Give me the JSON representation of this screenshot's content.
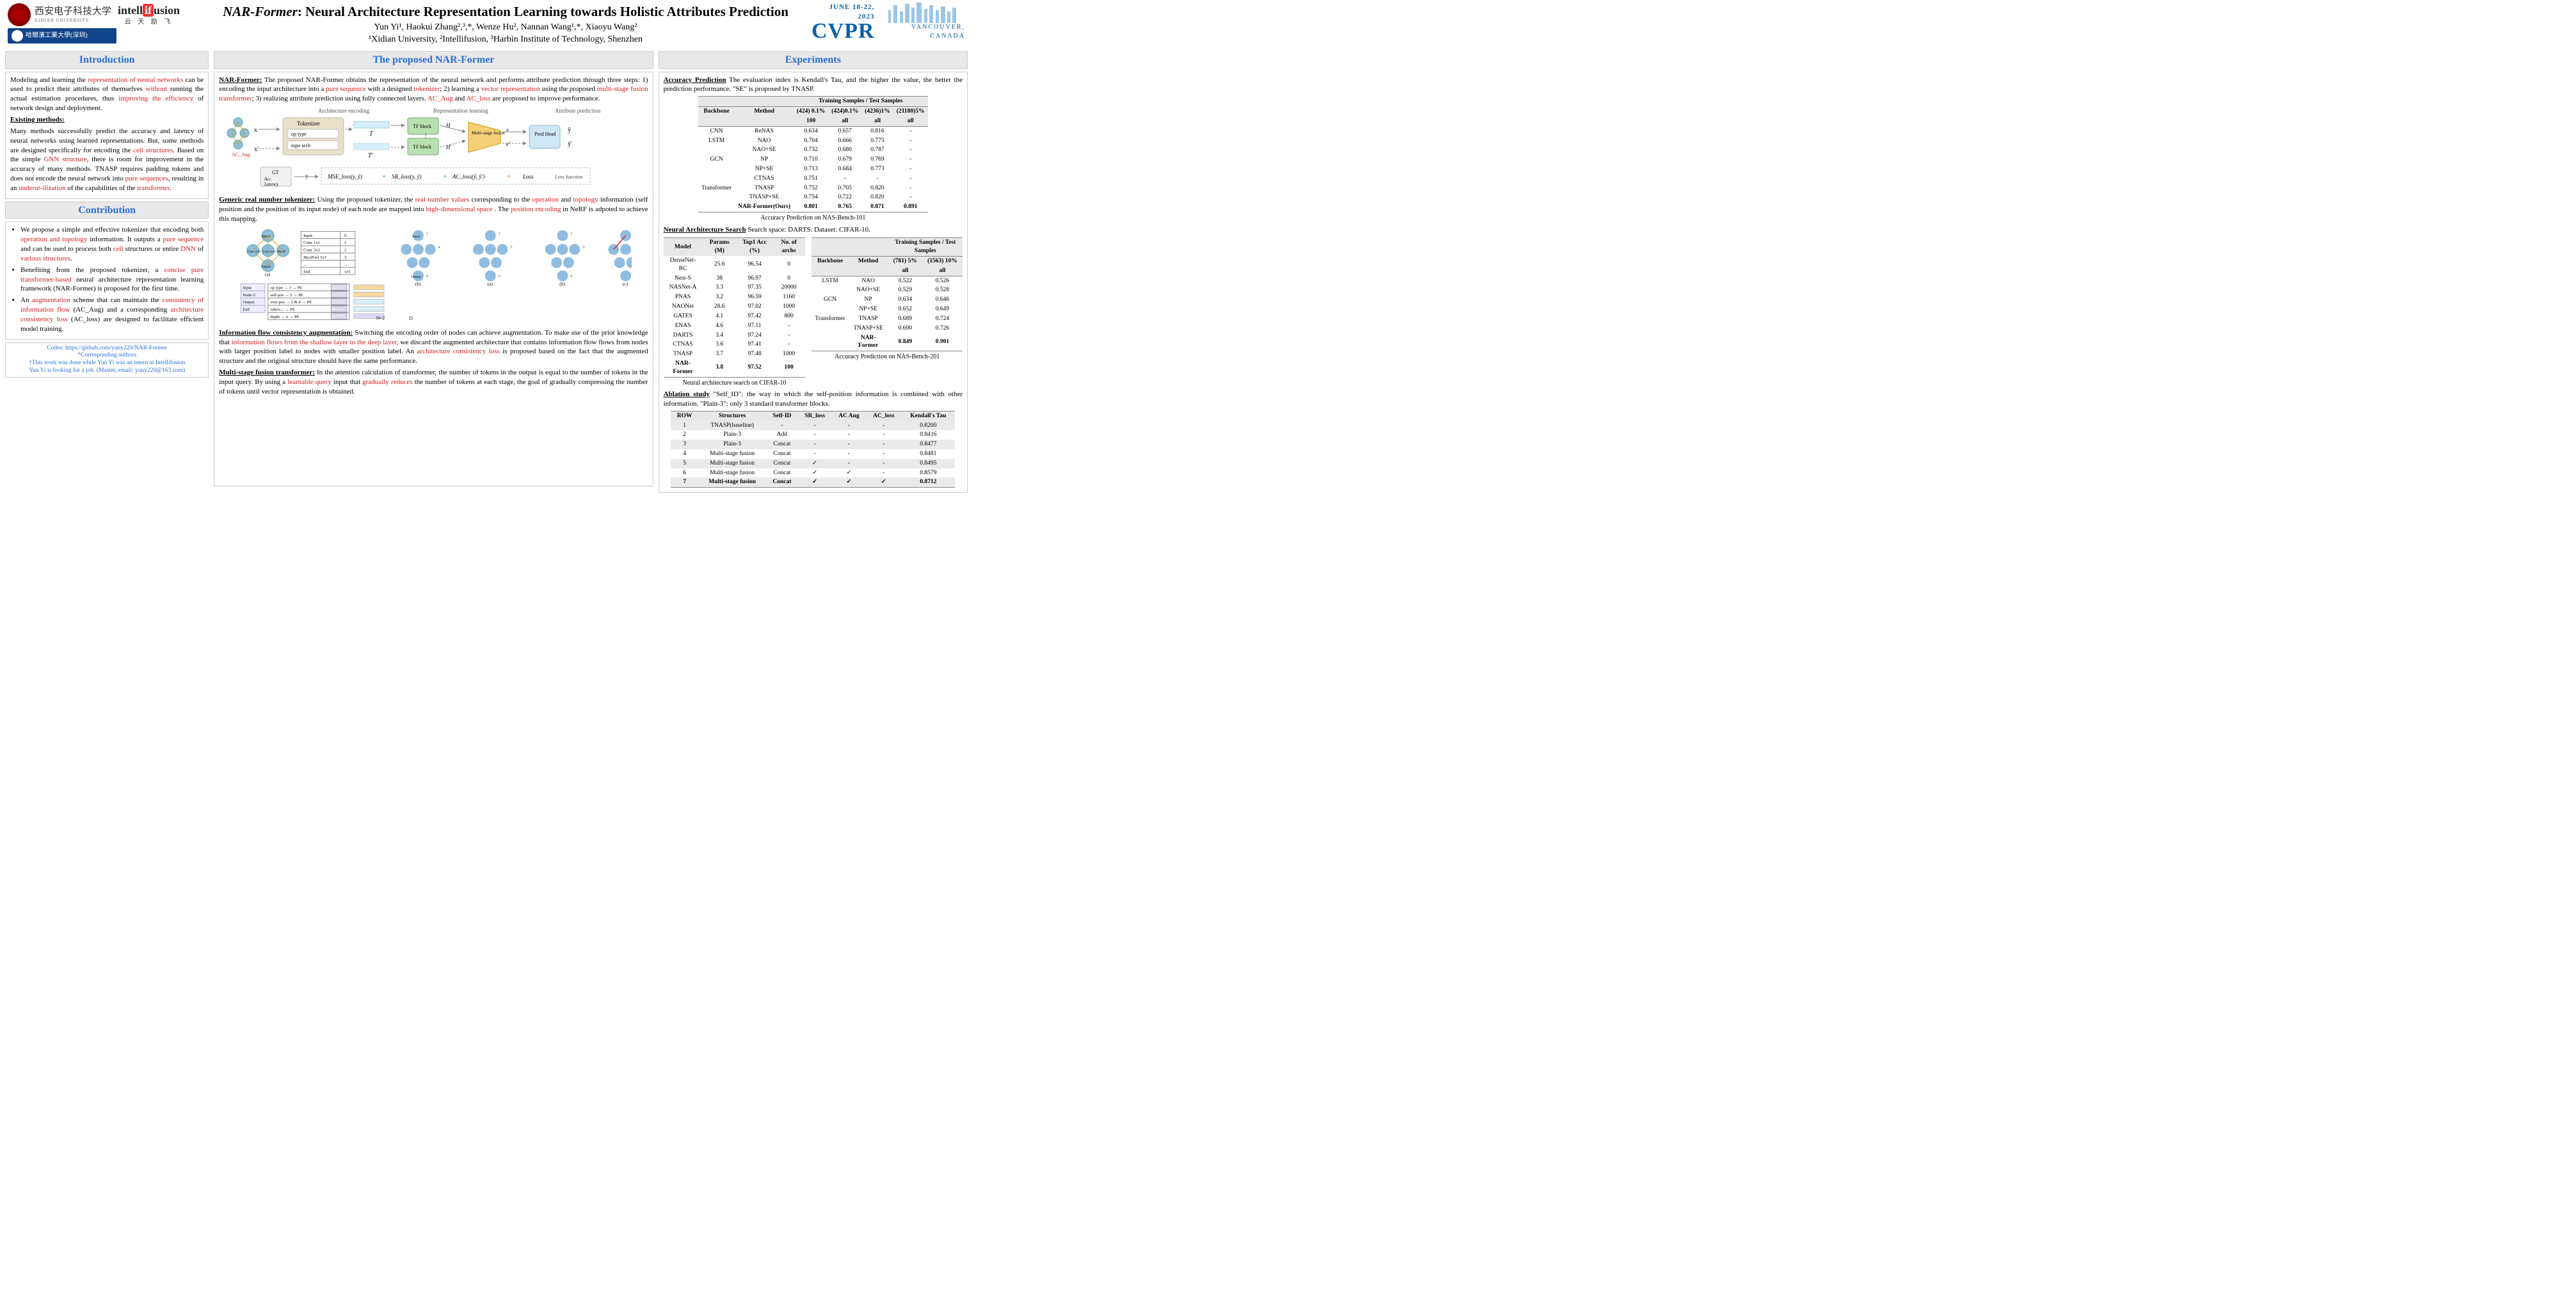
{
  "header": {
    "title_prefix": "NAR-Former",
    "title_rest": ": Neural Architecture Representation Learning towards  Holistic Attributes Prediction",
    "authors": "Yun Yi¹,     Haokui Zhang²,³,*,     Wenze Hu²,     Nannan Wang¹,*,     Xiaoyu Wang²",
    "affil": "¹Xidian University,    ²Intellifusion,    ³Harbin Institute of Technology, Shenzhen",
    "xidian_cn": "西安电子科技大学",
    "xidian_en": "XIDIAN UNIVERSITY",
    "intelli": "intell",
    "intelli_red": "if",
    "intelli2": "usion",
    "intelli_sub": "云  天  励  飞",
    "harbin": "哈爾濱工業大學(深圳)",
    "harbin_en": "HARBIN INSTITUTE OF TECHNOLOGY",
    "cvpr_date": "JUNE 18-22, 2023",
    "cvpr_logo": "CVPR",
    "cvpr_city": "VANCOUVER, CANADA"
  },
  "intro": {
    "head": "Introduction",
    "p1a": "Modeling and learning the ",
    "p1b": "representation of neural networks",
    "p1c": " can be used to predict their attributes of themselves ",
    "p1d": "without",
    "p1e": " running the actual estimation procedures, thus ",
    "p1f": "improving the efficiency",
    "p1g": " of network design and deployment.",
    "existing_h": "Existing methods:",
    "p2a": "Many methods successfully predict the accuracy and latency of neural networks using learned representations. But, some methods are designed specifically for encoding the ",
    "p2b": "cell structures",
    "p2c": ". Based on the simple ",
    "p2d": "GNN structure",
    "p2e": ", there is room for improvement in the accuracy of many methods. TNASP requires padding tokens and does not encode the neural network into ",
    "p2f": "pure sequences",
    "p2g": ", resulting in an ",
    "p2h": "underut-ilization",
    "p2i": " of the capabilities of the ",
    "p2j": "transformer",
    "p2k": "."
  },
  "contrib": {
    "head": "Contribution",
    "b1a": "We propose a simple and effective tokenizer that encoding both ",
    "b1b": "operation and topology",
    "b1c": " information. It outputs a ",
    "b1d": "pure sequence",
    "b1e": " and can be used to process both ",
    "b1f": "cell",
    "b1g": " structures or entire ",
    "b1h": "DNN",
    "b1i": " of ",
    "b1j": "various structures",
    "b1k": ".",
    "b2a": "Benefiting from the proposed tokenizer, a ",
    "b2b": "concise pure transformer-based",
    "b2c": " neural architecture representation learning framework (NAR-Former) is proposed for the first time.",
    "b3a": "An ",
    "b3b": "augmentation",
    "b3c": " scheme that can maintain the ",
    "b3d": "consistency of information flow",
    "b3e": " (AC_Aug) and a corresponding ",
    "b3f": "architecture consistency loss",
    "b3g": " (AC_loss) are designed to facilitate efficient model training."
  },
  "footnote": {
    "l1": "Codes: https://github.com/yuny220/NAR-Former",
    "l2": "*Corresponding authors",
    "l3": "†This work was done while Yun Yi was an intern at Intellifusion",
    "l4": "Yun Yi is looking for a job. (Master, email: yuny220@163.com)"
  },
  "mid": {
    "head": "The proposed NAR-Former",
    "nar_h": "NAR-Former:",
    "p1a": " The proposed NAR-Former obtains the representation of the neural network and performs attribute prediction through three steps: 1) encoding the input architecture into a ",
    "p1b": "pure sequence",
    "p1c": " with a designed ",
    "p1d": "tokenizer",
    "p1e": "; 2) learning a ",
    "p1f": "vector representation",
    "p1g": " using the proposed ",
    "p1h": "multi-stage fusion transformer",
    "p1i": "; 3) realizing attribute prediction using fully connected layers. ",
    "p1j": "AC_Aug",
    "p1k": " and ",
    "p1l": "AC_loss",
    "p1m": " are proposed to improve performance.",
    "diag1": {
      "labels": {
        "arch_enc": "Architecture encoding",
        "repr": "Representation learning",
        "attr": "Attribute prediction",
        "tokenizer": "Tokenizer",
        "optype": "op type",
        "topo": "topo arch",
        "tf1": "TF block",
        "tf2": "TF block",
        "fusion": "Multi-stage fusion",
        "pred": "Pred Head",
        "gt": "GT",
        "acc": "Acc",
        "lat": "Latency",
        "mse": "MSE_loss(y, ŷ)",
        "sr": "SR_loss(y, ŷ)",
        "ac": "AC_loss(ŷ, ŷ')",
        "loss": "Loss",
        "lossfn": "Loss function",
        "ac_aug": "AC_Aug"
      },
      "colors": {
        "tokenizer_bg": "#e8e0c8",
        "tf_bg": "#b8e0b0",
        "fusion_bg": "#f5d078",
        "pred_bg": "#cfe6f5",
        "node": "#8fbce0",
        "border": "#bbbbbb"
      }
    },
    "tok_h": "Generic real number tokenizer:",
    "tok_a": " Using the proposed tokenizer, the ",
    "tok_b": "real number values",
    "tok_c": " corresponding to the ",
    "tok_d": "operation",
    "tok_e": " and ",
    "tok_f": "topology",
    "tok_g": " information (self position and the position of its input node) of each node are mapped into ",
    "tok_h2": "high-dimensional space",
    "tok_i": " . The ",
    "tok_j": "position encoding",
    "tok_k": " in NeRF is adpoted to achieve this mapping.",
    "diag2": {
      "op_table": [
        [
          "Input",
          "0"
        ],
        [
          "Conv 1x1",
          "1"
        ],
        [
          "Conv 3x3",
          "2"
        ],
        [
          "MaxPool 3x3",
          "3"
        ],
        [
          "...",
          "..."
        ],
        [
          "End",
          "1e5"
        ]
      ],
      "pe_rows": [
        "op type → 3 → PE",
        "self-pos → 5 → PE",
        "sour-pos → 2 & 4 → PE",
        "others... → PE",
        "depth → 6 → PE"
      ],
      "node_labels": [
        "Input",
        "Conv 3x3",
        "Conv 1x1",
        "Max Pool 3x3",
        "Output"
      ],
      "colors": {
        "node_fill": "#8fbce0",
        "edge": "#d0a020",
        "edge_red": "#d02020",
        "table_border": "#888"
      }
    },
    "ifc_h": "Information flow consistency augmentation:",
    "ifc_a": " Switching the encoding order of nodes can achieve augmentation. To make use of the prior knowledge that ",
    "ifc_b": "information flows from the shallow layer to the deep layer,",
    "ifc_c": " we discard the augmented architecture that contains information flow flows from nodes with larger position label to nodes with smaller position label. An ",
    "ifc_d": "architecture consistency loss",
    "ifc_e": " is proposed based on the fact that the augmented structure and the original structure should have the same performance.",
    "msf_h": "Multi-stage fusion transformer:",
    "msf_a": " In the attention calculation of transformer, the number of tokens in the output is equal to the number of tokens in the input query. By using a ",
    "msf_b": "learnable query",
    "msf_c": " input that ",
    "msf_d": "gradually reduces",
    "msf_e": " the number of tokens at each stage, the goal of gradually compressing the number of tokens until vector representation is obtained."
  },
  "exp": {
    "head": "Experiments",
    "acc_h": "Accuracy Prediction",
    "acc_intro": "  The evaluation index is Kendall's Tau, and the higher the value, the better the prediction performance. \"SE\" is proposed by TNASP.",
    "t1": {
      "head_top": "Training Samples / Test Samples",
      "cols": [
        "Backbone",
        "Method",
        "(424) 0.1%",
        "(424)0.1%",
        "(4236)1%",
        "(21180)5%"
      ],
      "cols2": [
        "",
        "",
        "100",
        "all",
        "all",
        "all"
      ],
      "rows": [
        [
          "CNN",
          "ReNAS",
          "0.634",
          "0.657",
          "0.816",
          "-"
        ],
        [
          "LSTM",
          "NAO",
          "0.704",
          "0.666",
          "0.775",
          "-"
        ],
        [
          "",
          "NAO+SE",
          "0.732",
          "0.680",
          "0.787",
          "-"
        ],
        [
          "GCN",
          "NP",
          "0.710",
          "0.679",
          "0.769",
          "-"
        ],
        [
          "",
          "NP+SE",
          "0.713",
          "0.684",
          "0.773",
          "-"
        ],
        [
          "",
          "CTNAS",
          "0.751",
          "-",
          "-",
          "-"
        ],
        [
          "Transformer",
          "TNASP",
          "0.752",
          "0.705",
          "0.820",
          "-"
        ],
        [
          "",
          "TNASP+SE",
          "0.754",
          "0.722",
          "0.820",
          "-"
        ],
        [
          "",
          "NAR-Former(Ours)",
          "0.801",
          "0.765",
          "0.871",
          "0.891"
        ]
      ],
      "bold_row": 8,
      "caption": "Accuracy Prediction on NAS-Bench-101"
    },
    "nas_h": "Neural Architecture Search",
    "nas_intro": "  Search space: DARTS. Dataset: CIFAR-10.",
    "t2a": {
      "cols": [
        "Model",
        "Params (M)",
        "Top1 Acc (%)",
        "No. of archs"
      ],
      "rows": [
        [
          "DenseNet-BC",
          "25.6",
          "96.54",
          "0"
        ],
        [
          "Nest-S",
          "38",
          "96.97",
          "0"
        ],
        [
          "NASNet-A",
          "3.3",
          "97.35",
          "20000"
        ],
        [
          "PNAS",
          "3.2",
          "96.59",
          "1160"
        ],
        [
          "NAONet",
          "28.6",
          "97.02",
          "1000"
        ],
        [
          "GATES",
          "4.1",
          "97.42",
          "800"
        ],
        [
          "ENAS",
          "4.6",
          "97.11",
          "-"
        ],
        [
          "DARTS",
          "3.4",
          "97.24",
          "-"
        ],
        [
          "CTNAS",
          "3.6",
          "97.41",
          "-"
        ],
        [
          "TNASP",
          "3.7",
          "97.48",
          "1000"
        ],
        [
          "NAR-Former",
          "3.8",
          "97.52",
          "100"
        ]
      ],
      "bold_row": 10,
      "caption": "Neural architecture search on CIFAR-10"
    },
    "t2b": {
      "head_top": "Training Samples / Test Samples",
      "cols": [
        "Backbone",
        "Method",
        "(781) 5%",
        "(1563) 10%"
      ],
      "cols2": [
        "",
        "",
        "all",
        "all"
      ],
      "rows": [
        [
          "LSTM",
          "NAO",
          "0.522",
          "0.526"
        ],
        [
          "",
          "NAO+SE",
          "0.529",
          "0.528"
        ],
        [
          "GCN",
          "NP",
          "0.634",
          "0.646"
        ],
        [
          "",
          "NP+SE",
          "0.652",
          "0.649"
        ],
        [
          "Transformer",
          "TNASP",
          "0.689",
          "0.724"
        ],
        [
          "",
          "TNASP+SE",
          "0.690",
          "0.726"
        ],
        [
          "",
          "NAR-Former",
          "0.849",
          "0.901"
        ]
      ],
      "bold_row": 6,
      "caption": "Accuracy Prediction on NAS-Bench-201"
    },
    "abl_h": "Ablation study",
    "abl_intro": " \"Self_ID\": the way in which the self-position information is combined with other information. \"Plain-3\": only 3 standard transformer blocks.",
    "t3": {
      "cols": [
        "ROW",
        "Structures",
        "Self-ID",
        "SR_loss",
        "AC Aug",
        "AC_loss",
        "Kendall's Tau"
      ],
      "rows": [
        [
          "1",
          "TNASP(baseline)",
          "-",
          "-",
          "-",
          "-",
          "0.8200"
        ],
        [
          "2",
          "Plain-3",
          "Add",
          "-",
          "-",
          "-",
          "0.8416"
        ],
        [
          "3",
          "Plain-3",
          "Concat",
          "-",
          "-",
          "-",
          "0.8477"
        ],
        [
          "4",
          "Multi-stage fusion",
          "Concat",
          "-",
          "-",
          "-",
          "0.8481"
        ],
        [
          "5",
          "Multi-stage fusion",
          "Concat",
          "✓",
          "-",
          "-",
          "0.8495"
        ],
        [
          "6",
          "Multi-stage fusion",
          "Concat",
          "✓",
          "✓",
          "-",
          "0.8579"
        ],
        [
          "7",
          "Multi-stage fusion",
          "Concat",
          "✓",
          "✓",
          "✓",
          "0.8712"
        ]
      ],
      "shade_rows": [
        0,
        2,
        4,
        6
      ],
      "bold_row": 6
    }
  },
  "colors": {
    "head_bg": "#e8e8e8",
    "head_fg": "#2a6fd6",
    "accent_red": "#d02020",
    "border": "#cccccc",
    "link": "#2a6fd6"
  }
}
